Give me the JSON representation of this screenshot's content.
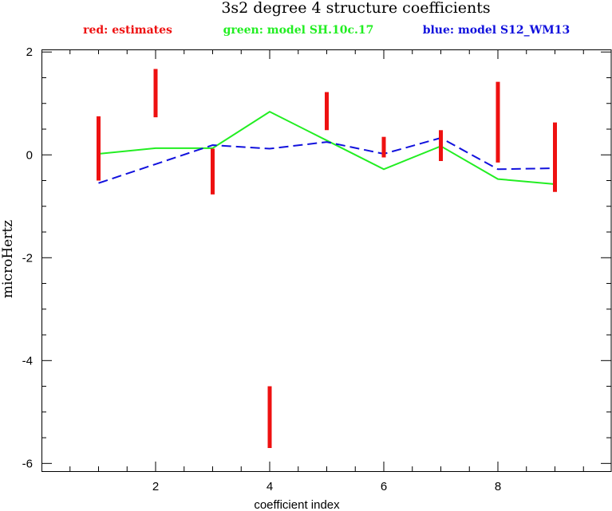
{
  "chart_data": {
    "type": "line",
    "title": "3s2 degree 4 structure coefficients",
    "xlabel": "coefficient index",
    "ylabel": "microHertz",
    "xlim": [
      0,
      10
    ],
    "ylim": [
      -6.15,
      2.05
    ],
    "xticks": [
      2,
      4,
      6,
      8
    ],
    "xtick_labels": [
      "2",
      "4",
      "6",
      "8"
    ],
    "yticks": [
      2,
      0,
      -2,
      -4,
      -6
    ],
    "ytick_labels": [
      "2",
      "0",
      "-2",
      "-4",
      "-6"
    ],
    "grid": false,
    "legend_position": "top",
    "colors": {
      "red": "#ee1111",
      "green": "#22ee22",
      "blue": "#1111dd"
    },
    "legend": [
      {
        "label": "red: estimates",
        "color": "#ee1111"
      },
      {
        "label": "green: model SH.10c.17",
        "color": "#22ee22"
      },
      {
        "label": "blue: model S12_WM13",
        "color": "#1111dd"
      }
    ],
    "estimates": [
      {
        "x": 1,
        "low": -0.5,
        "high": 0.75
      },
      {
        "x": 2,
        "low": 0.73,
        "high": 1.67
      },
      {
        "x": 3,
        "low": -0.77,
        "high": 0.12
      },
      {
        "x": 4,
        "low": -5.7,
        "high": -4.5
      },
      {
        "x": 5,
        "low": 0.48,
        "high": 1.22
      },
      {
        "x": 6,
        "low": -0.05,
        "high": 0.35
      },
      {
        "x": 7,
        "low": -0.12,
        "high": 0.48
      },
      {
        "x": 8,
        "low": -0.15,
        "high": 1.42
      },
      {
        "x": 9,
        "low": -0.72,
        "high": 0.63
      }
    ],
    "series": [
      {
        "color": "#22ee22",
        "style": "solid",
        "x": [
          1,
          2,
          3,
          4,
          5,
          6,
          7,
          8,
          9
        ],
        "y": [
          0.02,
          0.13,
          0.13,
          0.84,
          0.28,
          -0.28,
          0.17,
          -0.47,
          -0.57
        ]
      },
      {
        "color": "#1111dd",
        "style": "dashed",
        "x": [
          1,
          2,
          3,
          4,
          5,
          6,
          7,
          8,
          9
        ],
        "y": [
          -0.55,
          -0.18,
          0.19,
          0.12,
          0.25,
          0.02,
          0.33,
          -0.28,
          -0.26
        ]
      }
    ]
  }
}
